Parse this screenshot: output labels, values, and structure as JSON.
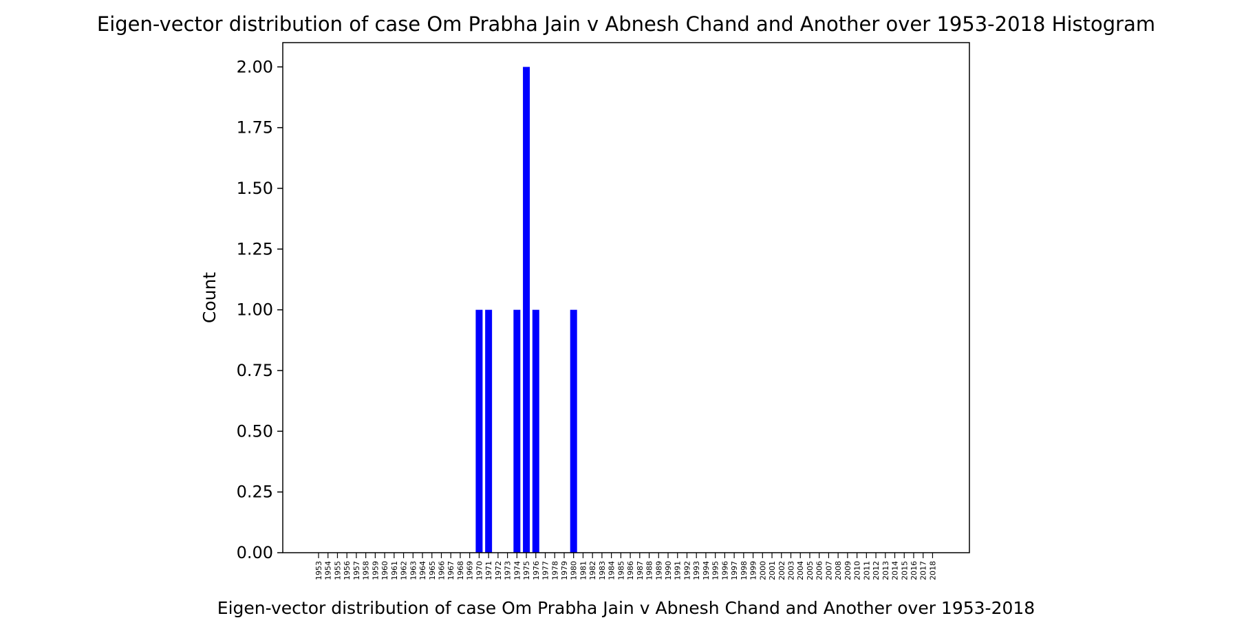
{
  "chart_data": {
    "type": "bar",
    "title": "Eigen-vector distribution of case Om Prabha Jain v Abnesh Chand and Another over 1953-2018 Histogram",
    "xlabel": "Eigen-vector distribution of case Om Prabha Jain v Abnesh Chand and Another over 1953-2018",
    "ylabel": "Count",
    "ylim": [
      0,
      2.1
    ],
    "yticks": [
      "0.00",
      "0.25",
      "0.50",
      "0.75",
      "1.00",
      "1.25",
      "1.50",
      "1.75",
      "2.00"
    ],
    "grid": false,
    "bar_color": "#0000ff",
    "categories": [
      "1953",
      "1954",
      "1955",
      "1956",
      "1957",
      "1958",
      "1959",
      "1960",
      "1961",
      "1962",
      "1963",
      "1964",
      "1965",
      "1966",
      "1967",
      "1968",
      "1969",
      "1970",
      "1971",
      "1972",
      "1973",
      "1974",
      "1975",
      "1976",
      "1977",
      "1978",
      "1979",
      "1980",
      "1981",
      "1982",
      "1983",
      "1984",
      "1985",
      "1986",
      "1987",
      "1988",
      "1989",
      "1990",
      "1991",
      "1992",
      "1993",
      "1994",
      "1995",
      "1996",
      "1997",
      "1998",
      "1999",
      "2000",
      "2001",
      "2002",
      "2003",
      "2004",
      "2005",
      "2006",
      "2007",
      "2008",
      "2009",
      "2010",
      "2011",
      "2012",
      "2013",
      "2014",
      "2015",
      "2016",
      "2017",
      "2018"
    ],
    "values": [
      0,
      0,
      0,
      0,
      0,
      0,
      0,
      0,
      0,
      0,
      0,
      0,
      0,
      0,
      0,
      0,
      0,
      1,
      1,
      0,
      0,
      1,
      2,
      1,
      0,
      0,
      0,
      1,
      0,
      0,
      0,
      0,
      0,
      0,
      0,
      0,
      0,
      0,
      0,
      0,
      0,
      0,
      0,
      0,
      0,
      0,
      0,
      0,
      0,
      0,
      0,
      0,
      0,
      0,
      0,
      0,
      0,
      0,
      0,
      0,
      0,
      0,
      0,
      0,
      0,
      0
    ]
  }
}
